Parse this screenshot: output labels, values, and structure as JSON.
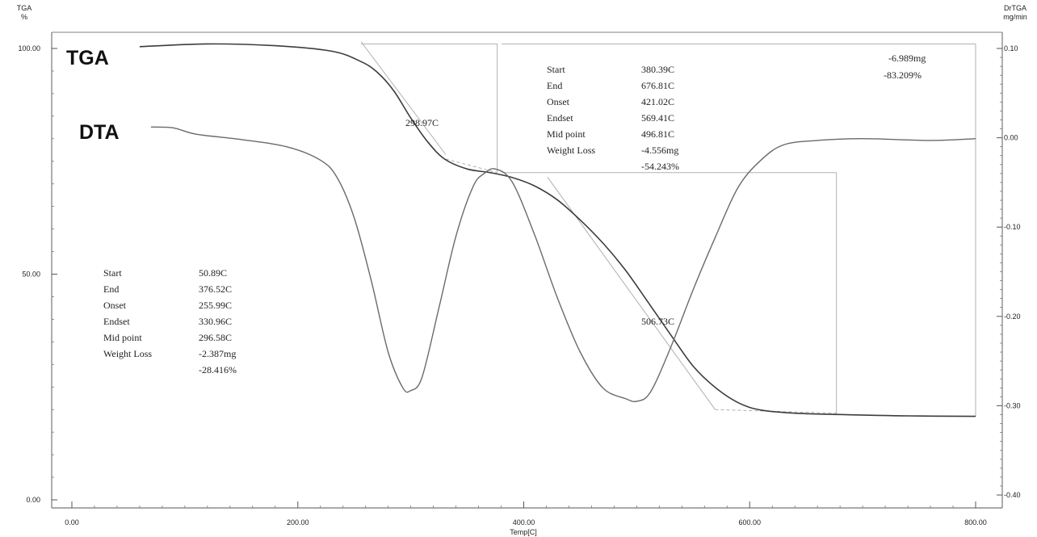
{
  "chart_data": {
    "type": "line",
    "x_axis": {
      "label": "Temp[C]",
      "range": [
        0,
        800
      ],
      "ticks": [
        "0.00",
        "200.00",
        "400.00",
        "600.00",
        "800.00"
      ]
    },
    "y_left": {
      "title_line1": "TGA",
      "title_line2": "%",
      "range": [
        0,
        100
      ],
      "ticks": [
        "0.00",
        "50.00",
        "100.00"
      ]
    },
    "y_right": {
      "title_line1": "DrTGA",
      "title_line2": "mg/min",
      "range": [
        -0.4,
        0.1
      ],
      "ticks": [
        "0.10",
        "0.00",
        "-0.10",
        "-0.20",
        "-0.30",
        "-0.40"
      ]
    },
    "grid": false,
    "series": [
      {
        "name": "TGA",
        "axis": "left",
        "points": [
          [
            60,
            100.4
          ],
          [
            120,
            101.0
          ],
          [
            180,
            100.6
          ],
          [
            230,
            99.4
          ],
          [
            255,
            97.2
          ],
          [
            270,
            94.8
          ],
          [
            285,
            90.6
          ],
          [
            300,
            84.6
          ],
          [
            315,
            79.3
          ],
          [
            330,
            75.5
          ],
          [
            350,
            73.3
          ],
          [
            370,
            72.5
          ],
          [
            390,
            71.4
          ],
          [
            410,
            69.5
          ],
          [
            430,
            66.4
          ],
          [
            450,
            62.0
          ],
          [
            470,
            56.9
          ],
          [
            490,
            50.9
          ],
          [
            510,
            43.8
          ],
          [
            530,
            36.6
          ],
          [
            550,
            29.6
          ],
          [
            570,
            24.8
          ],
          [
            590,
            21.5
          ],
          [
            610,
            19.9
          ],
          [
            640,
            19.2
          ],
          [
            680,
            18.9
          ],
          [
            740,
            18.6
          ],
          [
            800,
            18.5
          ]
        ]
      },
      {
        "name": "DTA",
        "axis": "right",
        "points": [
          [
            70,
            0.012
          ],
          [
            90,
            0.011
          ],
          [
            110,
            0.004
          ],
          [
            150,
            -0.002
          ],
          [
            190,
            -0.01
          ],
          [
            220,
            -0.025
          ],
          [
            235,
            -0.045
          ],
          [
            250,
            -0.09
          ],
          [
            265,
            -0.16
          ],
          [
            280,
            -0.24
          ],
          [
            293,
            -0.28
          ],
          [
            300,
            -0.283
          ],
          [
            310,
            -0.268
          ],
          [
            325,
            -0.19
          ],
          [
            340,
            -0.11
          ],
          [
            355,
            -0.055
          ],
          [
            365,
            -0.04
          ],
          [
            375,
            -0.035
          ],
          [
            390,
            -0.05
          ],
          [
            410,
            -0.11
          ],
          [
            430,
            -0.18
          ],
          [
            450,
            -0.24
          ],
          [
            470,
            -0.28
          ],
          [
            490,
            -0.292
          ],
          [
            500,
            -0.295
          ],
          [
            512,
            -0.285
          ],
          [
            530,
            -0.235
          ],
          [
            550,
            -0.17
          ],
          [
            570,
            -0.11
          ],
          [
            590,
            -0.055
          ],
          [
            610,
            -0.025
          ],
          [
            630,
            -0.008
          ],
          [
            660,
            -0.003
          ],
          [
            700,
            -0.001
          ],
          [
            760,
            -0.003
          ],
          [
            800,
            -0.001
          ]
        ]
      }
    ],
    "curve_labels": [
      "TGA",
      "DTA"
    ],
    "peak_labels": [
      "298.97C",
      "506.73C"
    ],
    "annotation_step1": {
      "rows": [
        [
          "Start",
          "50.89C"
        ],
        [
          "End",
          "376.52C"
        ],
        [
          "Onset",
          "255.99C"
        ],
        [
          "Endset",
          "330.96C"
        ],
        [
          "Mid point",
          "296.58C"
        ],
        [
          "Weight Loss",
          "-2.387mg"
        ],
        [
          "",
          "-28.416%"
        ]
      ]
    },
    "annotation_step2": {
      "rows": [
        [
          "Start",
          "380.39C"
        ],
        [
          "End",
          "676.81C"
        ],
        [
          "Onset",
          "421.02C"
        ],
        [
          "Endset",
          "569.41C"
        ],
        [
          "Mid point",
          "496.81C"
        ],
        [
          "Weight Loss",
          "-4.556mg"
        ],
        [
          "",
          "-54.243%"
        ]
      ]
    },
    "annotation_total": [
      "-6.989mg",
      "-83.209%"
    ]
  }
}
